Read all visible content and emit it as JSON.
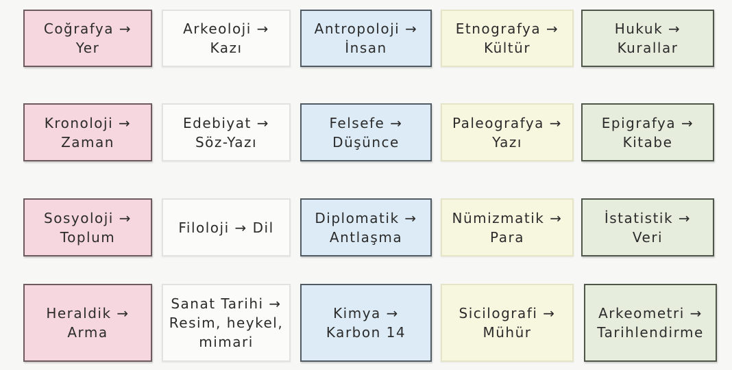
{
  "colors": {
    "pink": "#f6d6df",
    "white": "#fbfbfa",
    "blue": "#dcebf5",
    "yellow": "#f7f6de",
    "green": "#e6eddc"
  },
  "cards": [
    {
      "lines": [
        "Coğrafya →",
        "Yer"
      ]
    },
    {
      "lines": [
        "Arkeoloji →",
        "Kazı"
      ]
    },
    {
      "lines": [
        "Antropoloji →",
        "İnsan"
      ]
    },
    {
      "lines": [
        "Etnografya →",
        "Kültür"
      ]
    },
    {
      "lines": [
        "Hukuk →",
        "Kurallar"
      ]
    },
    {
      "lines": [
        "Kronoloji →",
        "Zaman"
      ]
    },
    {
      "lines": [
        "Edebiyat →",
        "Söz-Yazı"
      ]
    },
    {
      "lines": [
        "Felsefe →",
        "Düşünce"
      ]
    },
    {
      "lines": [
        "Paleografya →",
        "Yazı"
      ]
    },
    {
      "lines": [
        "Epigrafya →",
        "Kitabe"
      ]
    },
    {
      "lines": [
        "Sosyoloji →",
        "Toplum"
      ]
    },
    {
      "lines": [
        "Filoloji → Dil"
      ]
    },
    {
      "lines": [
        "Diplomatik →",
        "Antlaşma"
      ]
    },
    {
      "lines": [
        "Nümizmatik →",
        "Para"
      ]
    },
    {
      "lines": [
        "İstatistik →",
        "Veri"
      ]
    },
    {
      "lines": [
        "Heraldik →",
        "Arma"
      ]
    },
    {
      "lines": [
        "Sanat Tarihi →",
        "Resim, heykel,",
        "mimari"
      ]
    },
    {
      "lines": [
        "Kimya →",
        "Karbon 14"
      ]
    },
    {
      "lines": [
        "Sicilografi →",
        "Mühür"
      ]
    },
    {
      "lines": [
        "Arkeometri →",
        "Tarihlendirme"
      ]
    }
  ]
}
